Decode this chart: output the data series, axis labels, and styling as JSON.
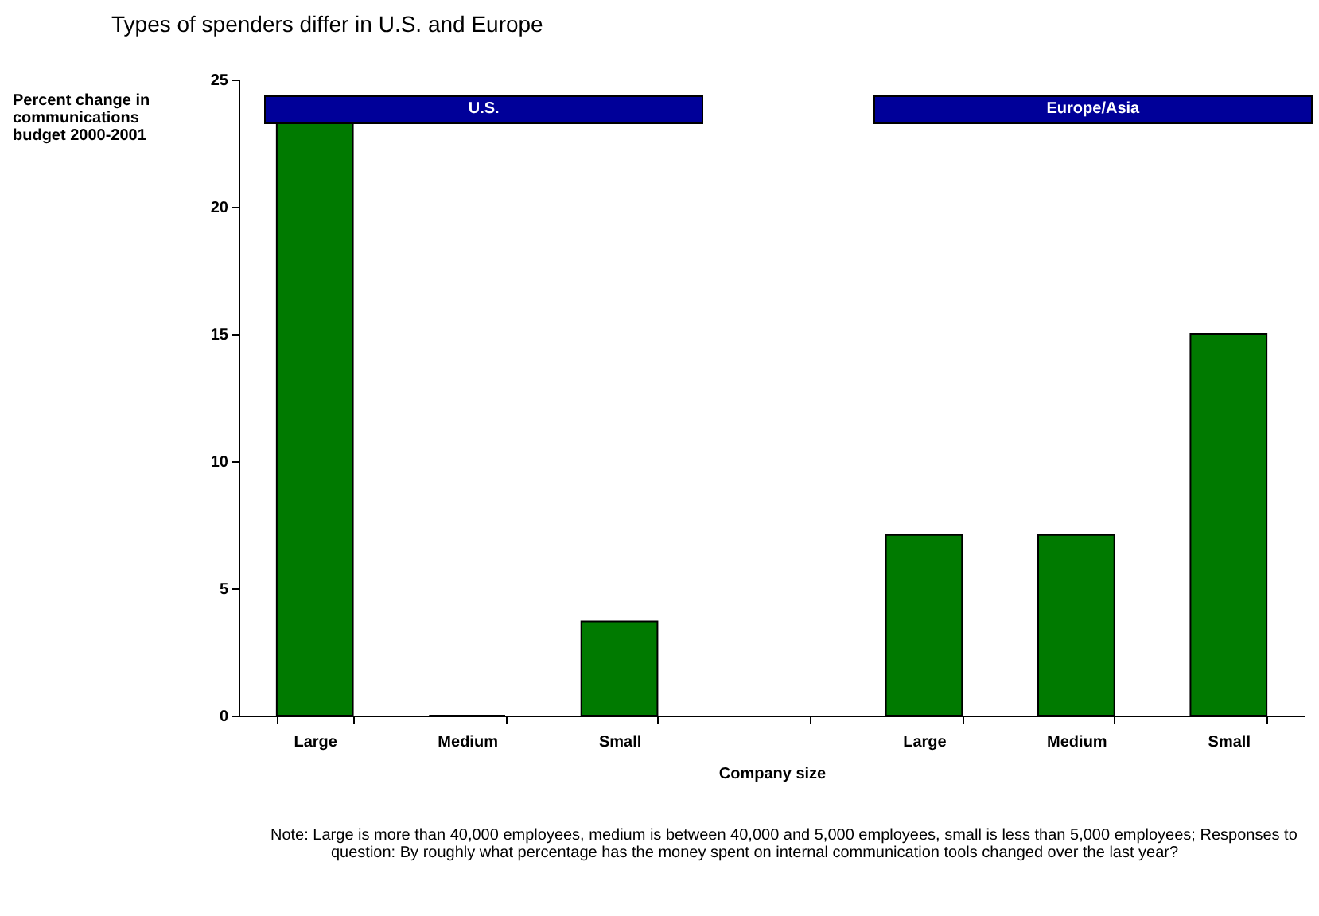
{
  "chart_data": {
    "type": "bar",
    "title": "Types of spenders differ in U.S. and Europe",
    "ylabel": "Percent change in communications budget 2000-2001",
    "xlabel": "Company size",
    "categories": [
      "Large",
      "Medium",
      "Small",
      null,
      "Large",
      "Medium",
      "Small"
    ],
    "values": [
      23.4,
      0,
      3.7,
      null,
      7.1,
      7.1,
      15.0
    ],
    "color": "#007a00",
    "ylim": [
      0,
      25
    ],
    "yticks": [
      0,
      5,
      10,
      15,
      20,
      25
    ],
    "grid": false,
    "annotations": [
      "U.S.",
      "Europe/Asia",
      "Note:  Large is more than 40,000 employees, medium is between 40,000 and 5,000 employees,   small is less than 5,000 employees;  Responses to question: By roughly what percentage has the money spent on internal   communication tools changed over the last year?"
    ]
  }
}
